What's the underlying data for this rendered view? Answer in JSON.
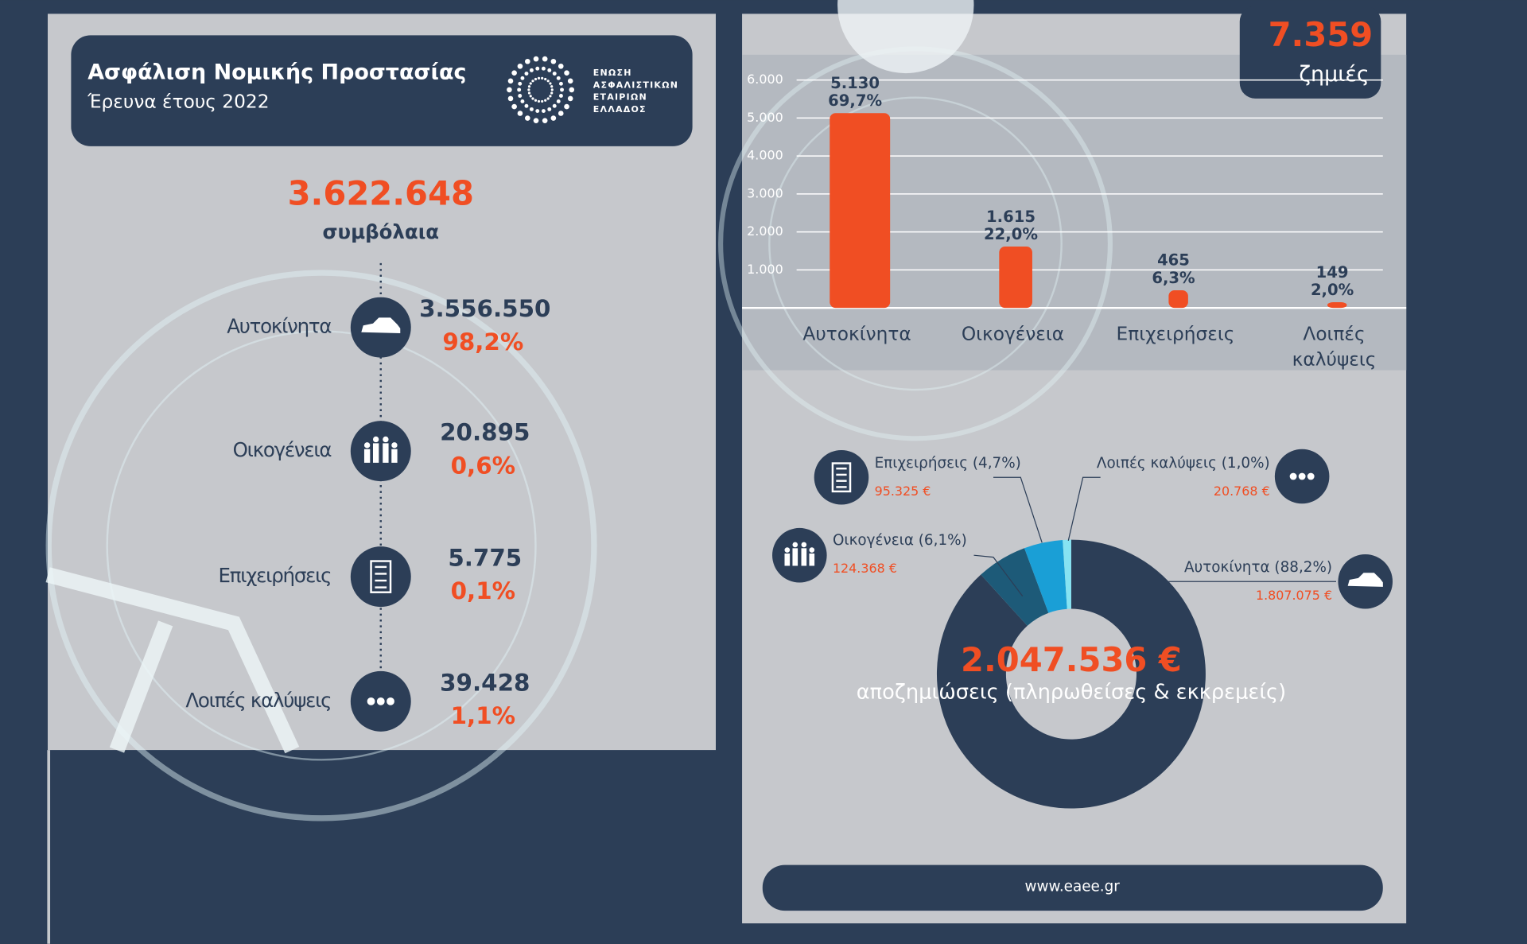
{
  "header": {
    "title": "Ασφάλιση Νομικής Προστασίας",
    "subtitle": "Έρευνα έτους 2022",
    "logo_text": [
      "ΕΝΩΣΗ",
      "ΑΣΦΑΛΙΣΤΙΚΩΝ",
      "ΕΤΑΙΡΙΩΝ",
      "ΕΛΛΑΔΟΣ"
    ]
  },
  "contracts": {
    "total": "3.622.648",
    "unit": "συμβόλαια",
    "items": [
      {
        "name": "Αυτοκίνητα",
        "value": "3.556.550",
        "share": "98,2%"
      },
      {
        "name": "Οικογένεια",
        "value": "20.895",
        "share": "0,6%"
      },
      {
        "name": "Επιχειρήσεις",
        "value": "5.775",
        "share": "0,1%"
      },
      {
        "name": "Λοιπές καλύψεις",
        "value": "39.428",
        "share": "1,1%"
      }
    ]
  },
  "chart_data": [
    {
      "type": "bar",
      "categories": [
        "Αυτοκίνητα",
        "Οικογένεια",
        "Επιχειρήσεις",
        "Λοιπές καλύψεις"
      ],
      "values": [
        5130,
        1615,
        465,
        149
      ],
      "value_labels": [
        "5.130",
        "1.615",
        "465",
        "149"
      ],
      "share_labels": [
        "69,7%",
        "22,0%",
        "6,3%",
        "2,0%"
      ],
      "color": "#f04e23",
      "ylim": [
        0,
        6000
      ],
      "yticks": [
        {
          "value": 1000,
          "label": "1.000"
        },
        {
          "value": 2000,
          "label": "2.000"
        },
        {
          "value": 3000,
          "label": "3.000"
        },
        {
          "value": 4000,
          "label": "4.000"
        },
        {
          "value": 5000,
          "label": "5.000"
        },
        {
          "value": 6000,
          "label": "6.000"
        }
      ],
      "grid": true,
      "total_label": "7.359",
      "total_caption": "ζημιές"
    },
    {
      "type": "pie",
      "categories": [
        "Αυτοκίνητα (88,2%)",
        "Οικογένεια (6,1%)",
        "Επιχειρήσεις (4,7%)",
        "Λοιπές καλύψεις (1,0%)"
      ],
      "values": [
        1807075,
        124368,
        95325,
        20768
      ],
      "value_labels": [
        "1.807.075 €",
        "124.368 €",
        "95.325 €",
        "20.768 €"
      ],
      "colors": [
        "#2c3e57",
        "#1d5a78",
        "#1a9fd6",
        "#86e3f2"
      ],
      "center_label": "2.047.536 €",
      "center_caption": "αποζημιώσεις (πληρωθείσες & εκκρεμείς)"
    }
  ],
  "footer": "www.eaee.gr"
}
